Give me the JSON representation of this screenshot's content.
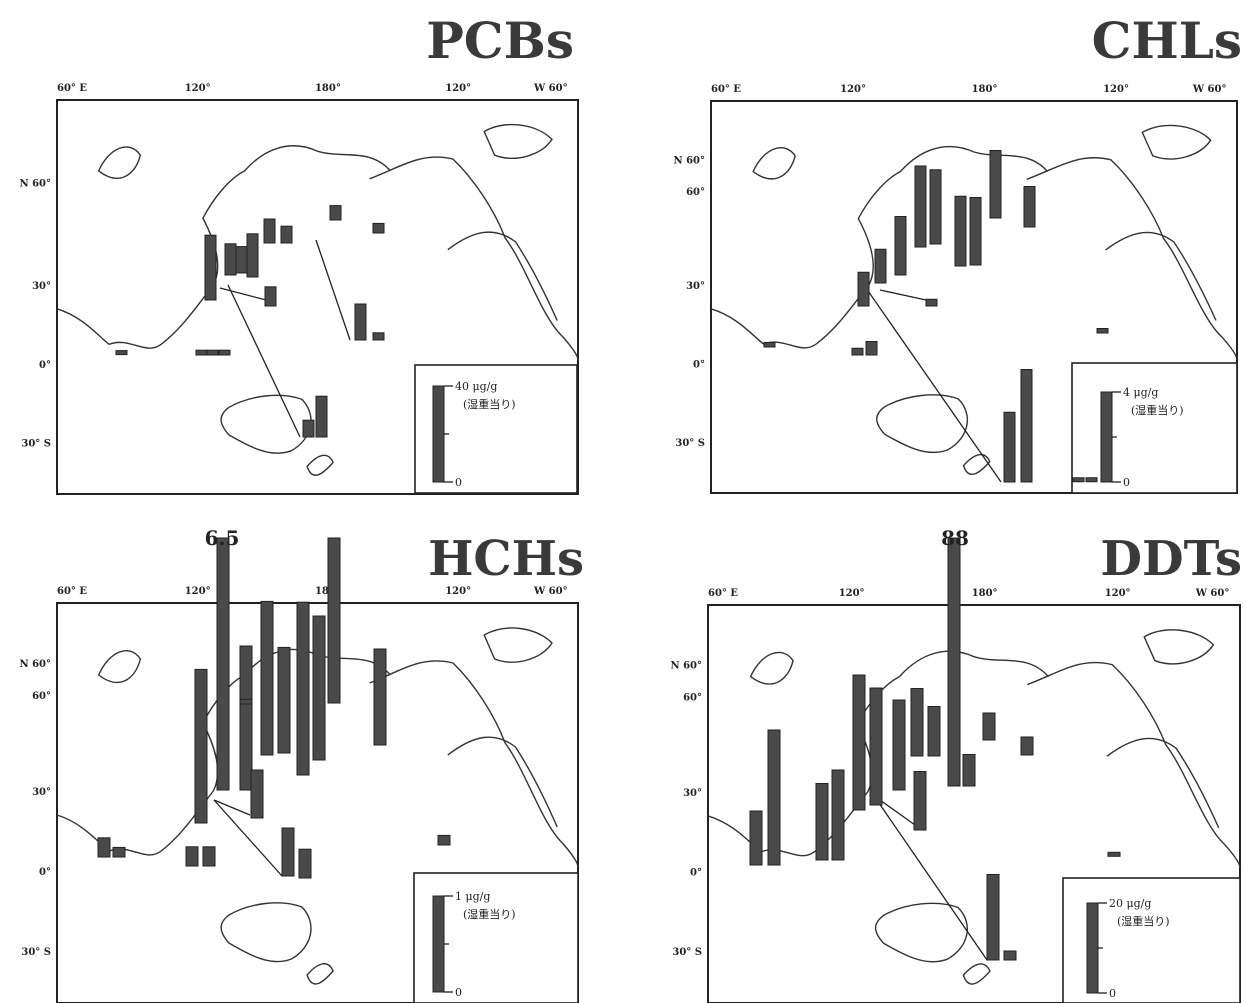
{
  "chart_data": [
    {
      "type": "bar",
      "title": "PCBs",
      "lon_ticks": [
        "60° E",
        "120°",
        "180°",
        "120°",
        "W 60°"
      ],
      "lat_ticks": [
        "N 60°",
        "30°",
        "0°",
        "30° S"
      ],
      "legend": {
        "value": "40 μg/g",
        "note": "(湿重当り)",
        "zero": "0",
        "max": 40
      },
      "values": [
        27,
        13,
        18,
        10,
        7,
        7,
        17,
        6,
        15,
        4,
        8,
        3,
        11,
        2,
        2,
        2,
        1
      ]
    },
    {
      "type": "bar",
      "title": "CHLs",
      "lon_ticks": [
        "60° E",
        "120°",
        "180°",
        "120°",
        "W 60°"
      ],
      "lat_ticks": [
        "N 60°",
        "60°",
        "30°",
        "0°",
        "30° S"
      ],
      "legend": {
        "value": "4 μg/g",
        "note": "(湿重当り)",
        "zero": "0",
        "max": 4
      },
      "values": [
        1.5,
        2.6,
        3.6,
        3.3,
        3.1,
        3.0,
        3.0,
        3.1,
        5.0,
        1.5,
        1.8,
        0.3,
        0.6,
        0.3,
        0.2,
        0.2,
        0.1,
        0.1
      ]
    },
    {
      "type": "bar",
      "title": "HCHs",
      "overflow_label": "6.5",
      "lon_ticks": [
        "60° E",
        "120°",
        "180°",
        "120°",
        "W 60°"
      ],
      "lat_ticks": [
        "N 60°",
        "60°",
        "30°",
        "0°",
        "30° S"
      ],
      "legend": {
        "value": "1 μg/g",
        "note": "(湿重当り)",
        "zero": "0",
        "max": 1
      },
      "values": [
        6.5,
        1.5,
        1.6,
        1.1,
        1.8,
        1.5,
        3.0,
        1.0,
        1.6,
        0.5,
        0.5,
        0.3,
        0.2,
        0.2,
        0.1,
        0.2,
        0.1,
        0.05
      ]
    },
    {
      "type": "bar",
      "title": "DDTs",
      "overflow_label": "88",
      "lon_ticks": [
        "60° E",
        "120°",
        "180°",
        "120°",
        "W 60°"
      ],
      "lat_ticks": [
        "N 60°",
        "60°",
        "30°",
        "0°",
        "30° S"
      ],
      "legend": {
        "value": "20 μg/g",
        "note": "(湿重当り)",
        "zero": "0",
        "max": 20
      },
      "values": [
        12,
        30,
        17,
        20,
        30,
        26,
        20,
        15,
        11,
        88,
        7,
        6,
        4,
        13,
        19,
        2,
        0.6
      ]
    }
  ]
}
